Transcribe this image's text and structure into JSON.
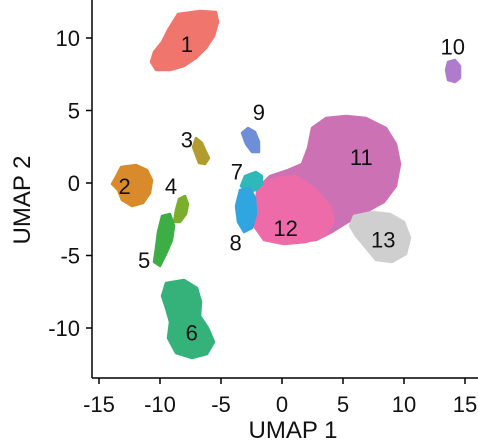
{
  "chart_data": {
    "type": "scatter",
    "title": "",
    "xlabel": "UMAP 1",
    "ylabel": "UMAP 2",
    "xlim": [
      -15.5,
      15.5
    ],
    "ylim": [
      -13.5,
      12.5
    ],
    "xticks": [
      -15,
      -10,
      -5,
      0,
      5,
      10,
      15
    ],
    "xtick_labels": [
      "-15",
      "-10",
      "-5",
      "0",
      "5",
      "10",
      "15"
    ],
    "yticks": [
      -10,
      -5,
      0,
      5,
      10
    ],
    "ytick_labels": [
      "-10",
      "-5",
      "0",
      "5",
      "10"
    ],
    "grid": false,
    "legend": "none",
    "clusters": [
      {
        "name": "1",
        "color": "#F0766D",
        "center": [
          -7.5,
          10.0
        ],
        "label_pos": [
          -7.8,
          9.6
        ]
      },
      {
        "name": "2",
        "color": "#D98B2B",
        "center": [
          -12.2,
          0.0
        ],
        "label_pos": [
          -12.9,
          -0.2
        ]
      },
      {
        "name": "3",
        "color": "#B39C2F",
        "center": [
          -6.1,
          2.3
        ],
        "label_pos": [
          -7.8,
          3.0
        ]
      },
      {
        "name": "4",
        "color": "#7BAE2C",
        "center": [
          -8.3,
          -1.6
        ],
        "label_pos": [
          -9.1,
          -0.2
        ]
      },
      {
        "name": "5",
        "color": "#3DAE45",
        "center": [
          -9.8,
          -3.8
        ],
        "label_pos": [
          -11.3,
          -5.3
        ]
      },
      {
        "name": "6",
        "color": "#34B27A",
        "center": [
          -7.5,
          -9.5
        ],
        "label_pos": [
          -7.4,
          -10.3
        ]
      },
      {
        "name": "7",
        "color": "#2FB8B8",
        "center": [
          -3.2,
          -1.3
        ],
        "label_pos": [
          -3.7,
          0.8
        ]
      },
      {
        "name": "8",
        "color": "#2FA6E0",
        "center": [
          -3.0,
          -2.2
        ],
        "label_pos": [
          -3.8,
          -4.1
        ]
      },
      {
        "name": "9",
        "color": "#6E8FD8",
        "center": [
          -2.5,
          3.2
        ],
        "label_pos": [
          -1.9,
          4.9
        ]
      },
      {
        "name": "10",
        "color": "#AF7CCC",
        "center": [
          14.2,
          7.8
        ],
        "label_pos": [
          14.0,
          9.4
        ]
      },
      {
        "name": "11",
        "color": "#CC72B4",
        "center": [
          5.5,
          2.5
        ],
        "label_pos": [
          6.5,
          1.8
        ]
      },
      {
        "name": "12",
        "color": "#EC6BA8",
        "center": [
          1.0,
          -2.3
        ],
        "label_pos": [
          0.3,
          -3.1
        ]
      },
      {
        "name": "13",
        "color": "#CFCFCF",
        "center": [
          9.0,
          -3.5
        ],
        "label_pos": [
          8.3,
          -3.9
        ]
      }
    ]
  }
}
